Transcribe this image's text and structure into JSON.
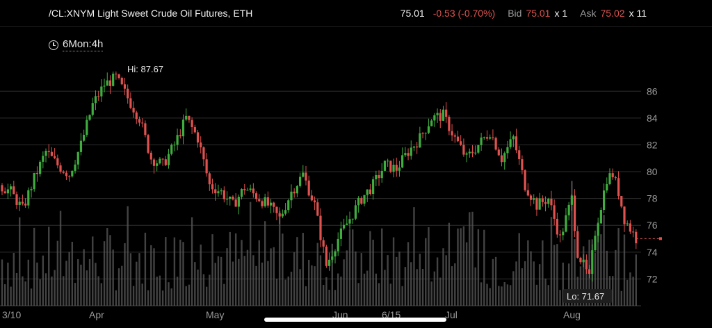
{
  "header": {
    "symbol": "/CL:XNYM Light Sweet Crude Oil Futures, ETH",
    "last": "75.01",
    "change": "-0.53 (-0.70%)",
    "bid_label": "Bid",
    "bid": "75.01",
    "bid_size": "x 1",
    "ask_label": "Ask",
    "ask": "75.02",
    "ask_size": "x 11"
  },
  "timeframe": {
    "label": "6Mon:4h",
    "icon": "clock-icon"
  },
  "colors": {
    "up": "#3fae3f",
    "down": "#e0524f",
    "grid": "#2e2e2e",
    "axis_text": "#9a9a9a",
    "volume": "#5a5a5a"
  },
  "chart_data": {
    "type": "candlestick",
    "ylim": [
      70,
      87
    ],
    "y_ticks": [
      72,
      74,
      76,
      78,
      80,
      82,
      84,
      86
    ],
    "x_ticks": [
      "3/10",
      "Apr",
      "May",
      "Jun",
      "6/15",
      "Jul",
      "Aug"
    ],
    "hi": {
      "label": "Hi: 87.67",
      "value": 87.67
    },
    "lo": {
      "label": "Lo: 71.67",
      "value": 71.67
    },
    "last_price": 75.01,
    "trend": [
      [
        0,
        79
      ],
      [
        4,
        78.5
      ],
      [
        8,
        77.2
      ],
      [
        12,
        79.5
      ],
      [
        16,
        81.5
      ],
      [
        20,
        80.5
      ],
      [
        24,
        79.8
      ],
      [
        28,
        82
      ],
      [
        32,
        85
      ],
      [
        36,
        86.5
      ],
      [
        40,
        87
      ],
      [
        44,
        85.5
      ],
      [
        48,
        84
      ],
      [
        52,
        81
      ],
      [
        56,
        80.5
      ],
      [
        60,
        82
      ],
      [
        64,
        84
      ],
      [
        68,
        82.5
      ],
      [
        72,
        79
      ],
      [
        76,
        78.5
      ],
      [
        80,
        77.5
      ],
      [
        84,
        78.8
      ],
      [
        88,
        78.2
      ],
      [
        92,
        77.5
      ],
      [
        96,
        76.5
      ],
      [
        100,
        78.5
      ],
      [
        104,
        79.8
      ],
      [
        108,
        77.5
      ],
      [
        112,
        73
      ],
      [
        116,
        75
      ],
      [
        120,
        76.5
      ],
      [
        124,
        78
      ],
      [
        128,
        79
      ],
      [
        132,
        80.5
      ],
      [
        136,
        80.2
      ],
      [
        140,
        81.5
      ],
      [
        144,
        82.5
      ],
      [
        148,
        84
      ],
      [
        152,
        84.2
      ],
      [
        156,
        82.5
      ],
      [
        160,
        81
      ],
      [
        164,
        82
      ],
      [
        168,
        83
      ],
      [
        172,
        81
      ],
      [
        176,
        82.5
      ],
      [
        180,
        79
      ],
      [
        184,
        77.5
      ],
      [
        188,
        78
      ],
      [
        192,
        75
      ],
      [
        196,
        78
      ],
      [
        198,
        74
      ],
      [
        202,
        72
      ],
      [
        204,
        75.5
      ],
      [
        208,
        79.5
      ],
      [
        210,
        79.8
      ],
      [
        212,
        78.5
      ],
      [
        214,
        76.5
      ],
      [
        218,
        75.01
      ]
    ],
    "candle_count": 218
  }
}
